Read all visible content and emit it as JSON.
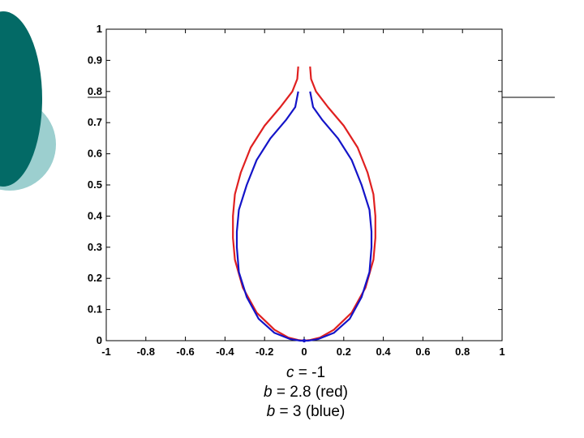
{
  "slide": {
    "caption_lines": [
      {
        "italic": "c",
        "rest": " = -1"
      },
      {
        "italic": "b",
        "rest": " = 2.8 (red)"
      },
      {
        "italic": "b",
        "rest": " = 3 (blue)"
      }
    ]
  },
  "colors": {
    "dark_teal": "#036a66",
    "light_teal": "#9ccfcf",
    "red_series": "#e02020",
    "blue_series": "#1414c8"
  },
  "chart_data": {
    "type": "line",
    "title": "",
    "xlabel": "",
    "ylabel": "",
    "xlim": [
      -1,
      1
    ],
    "ylim": [
      0,
      1
    ],
    "xticks": [
      "-1",
      "-0.8",
      "-0.6",
      "-0.4",
      "-0.2",
      "0",
      "0.2",
      "0.4",
      "0.6",
      "0.8",
      "1"
    ],
    "yticks": [
      "0",
      "0.1",
      "0.2",
      "0.3",
      "0.4",
      "0.5",
      "0.6",
      "0.7",
      "0.8",
      "0.9",
      "1"
    ],
    "grid": false,
    "series": [
      {
        "color": "#e02020",
        "x": [
          -0.03,
          -0.035,
          -0.06,
          -0.12,
          -0.2,
          -0.27,
          -0.32,
          -0.35,
          -0.36,
          -0.36,
          -0.35,
          -0.31,
          -0.24,
          -0.15,
          -0.08,
          -0.03,
          0.0,
          0.03,
          0.08,
          0.15,
          0.24,
          0.31,
          0.35,
          0.36,
          0.36,
          0.35,
          0.32,
          0.27,
          0.2,
          0.12,
          0.06,
          0.035,
          0.03
        ],
        "y": [
          0.88,
          0.84,
          0.8,
          0.75,
          0.69,
          0.62,
          0.54,
          0.47,
          0.4,
          0.33,
          0.26,
          0.17,
          0.09,
          0.035,
          0.01,
          0.002,
          0.0,
          0.002,
          0.01,
          0.035,
          0.09,
          0.17,
          0.26,
          0.33,
          0.4,
          0.47,
          0.54,
          0.62,
          0.69,
          0.75,
          0.8,
          0.84,
          0.88
        ]
      },
      {
        "color": "#1414c8",
        "x": [
          -0.03,
          -0.045,
          -0.09,
          -0.17,
          -0.24,
          -0.29,
          -0.33,
          -0.34,
          -0.34,
          -0.33,
          -0.29,
          -0.23,
          -0.15,
          -0.07,
          -0.02,
          0.0,
          0.02,
          0.07,
          0.15,
          0.23,
          0.29,
          0.33,
          0.34,
          0.34,
          0.33,
          0.29,
          0.24,
          0.17,
          0.09,
          0.045,
          0.03
        ],
        "y": [
          0.8,
          0.75,
          0.71,
          0.65,
          0.58,
          0.5,
          0.42,
          0.35,
          0.3,
          0.22,
          0.14,
          0.07,
          0.025,
          0.005,
          0.0,
          0.0,
          0.0,
          0.005,
          0.025,
          0.07,
          0.14,
          0.22,
          0.3,
          0.35,
          0.42,
          0.5,
          0.58,
          0.65,
          0.71,
          0.75,
          0.8
        ]
      }
    ]
  }
}
